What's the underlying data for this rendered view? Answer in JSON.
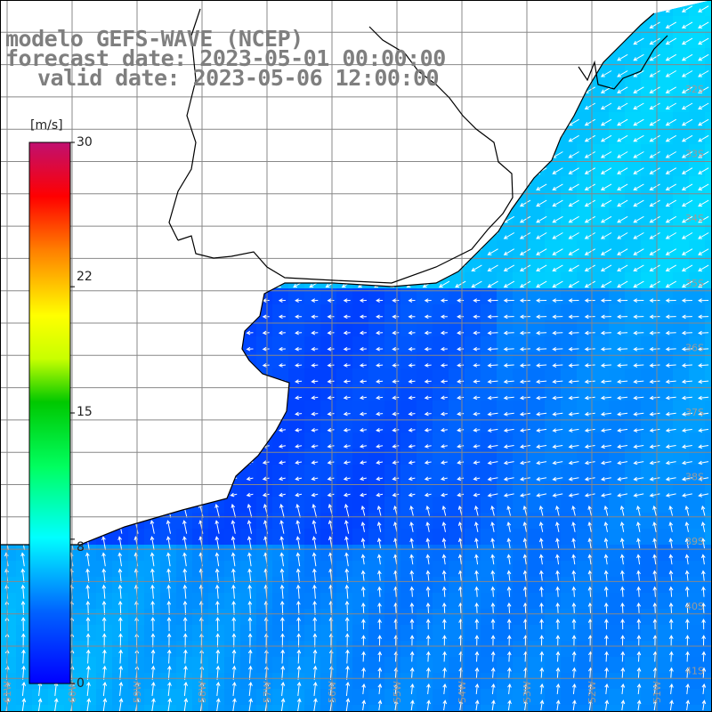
{
  "title": {
    "model": "modelo GEFS-WAVE (NCEP)",
    "forecast": "forecast date: 2023-05-01 00:00:00",
    "valid": "valid date: 2023-05-06 12:00:00"
  },
  "colorbar": {
    "unit": "[m/s]",
    "min": 0,
    "max": 30,
    "ticks": [
      "30",
      "22",
      "15",
      "8",
      "0"
    ],
    "tick_values": [
      30,
      22,
      15,
      8,
      0
    ]
  },
  "grid": {
    "lat_labels": [
      "32S",
      "33S",
      "34S",
      "35S",
      "36S",
      "37S",
      "38S",
      "39S",
      "40S",
      "41S"
    ],
    "lon_labels": [
      "61W",
      "60W",
      "59W",
      "58W",
      "57W",
      "56W",
      "55W",
      "54W",
      "53W",
      "52W",
      "51W"
    ]
  },
  "colors": {
    "land": "#ffffff",
    "coast": "#000000",
    "grid": "#888888",
    "arrows": "#ffffff",
    "label": "#9a9a9a"
  }
}
